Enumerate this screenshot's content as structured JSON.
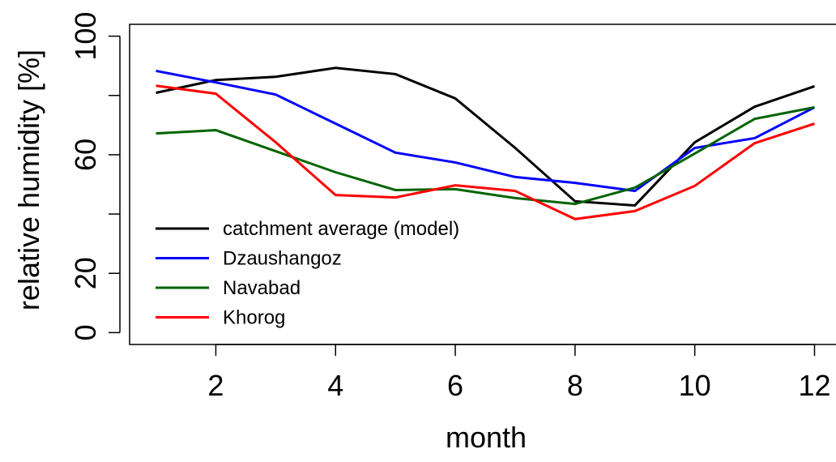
{
  "chart_data": {
    "type": "line",
    "x_label": "month",
    "y_label": "relative humidity [%]",
    "x": [
      1,
      2,
      3,
      4,
      5,
      6,
      7,
      8,
      9,
      10,
      11,
      12
    ],
    "series": [
      {
        "name": "catchment average (model)",
        "color": "#000000",
        "values": [
          80.9,
          85.2,
          86.3,
          89.3,
          87.2,
          79,
          62.3,
          44.3,
          42.9,
          64.2,
          76.2,
          83.1
        ]
      },
      {
        "name": "Dzaushangoz",
        "color": "#0000ff",
        "values": [
          88.3,
          84.4,
          80.3,
          70.5,
          60.7,
          57.4,
          52.5,
          50.5,
          47.8,
          62.3,
          65.6,
          76
        ]
      },
      {
        "name": "Navabad",
        "color": "#006400",
        "values": [
          67.2,
          68.3,
          61.2,
          54.1,
          48.1,
          48.4,
          45.4,
          43.4,
          48.9,
          60.4,
          72.1,
          76
        ]
      },
      {
        "name": "Khorog",
        "color": "#ff0000",
        "values": [
          83.3,
          80.6,
          64.2,
          46.4,
          45.6,
          49.7,
          47.8,
          38.3,
          41,
          49.5,
          63.9,
          70.5
        ]
      }
    ],
    "xlim": [
      0.56,
      12.44
    ],
    "xticks": [
      2,
      4,
      6,
      8,
      10,
      12
    ],
    "ylim": [
      -4,
      104
    ],
    "yticks": [
      0,
      20,
      60,
      100
    ],
    "yticks_unlabeled": [
      40,
      80
    ],
    "legend": "bottom-left"
  }
}
